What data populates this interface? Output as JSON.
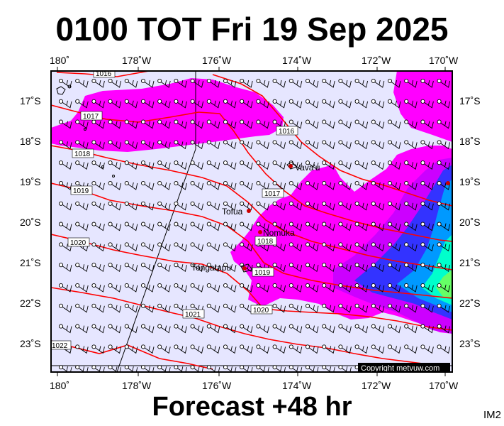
{
  "title": "0100 TOT Fri 19 Sep 2025",
  "footer": "Forecast +48 hr",
  "corner_label": "IM2",
  "copyright": "Copyright metvuw.com",
  "lon_labels": [
    "180˚",
    "178˚W",
    "176˚W",
    "174˚W",
    "172˚W",
    "170˚W"
  ],
  "lat_labels": [
    "17˚S",
    "18˚S",
    "19˚S",
    "20˚S",
    "21˚S",
    "22˚S",
    "23˚S"
  ],
  "isobar_labels": [
    "1016",
    "1017",
    "1018",
    "1019",
    "1020",
    "1021",
    "1022",
    "1016",
    "1017",
    "1018",
    "1019",
    "1020"
  ],
  "places": [
    {
      "name": "Vava'u"
    },
    {
      "name": "Tofua"
    },
    {
      "name": "Nomuka"
    },
    {
      "name": "Tongatapu"
    }
  ],
  "colors": {
    "ocean": "#e6e6ff",
    "rain_light": "#ff00ff",
    "rain_mid": "#cc00ff",
    "rain_heavy": "#3333ff",
    "rain_very_heavy": "#0099ff",
    "rain_extreme": "#00ffcc",
    "rain_peak": "#66ff66",
    "isobar": "#ff0000"
  }
}
